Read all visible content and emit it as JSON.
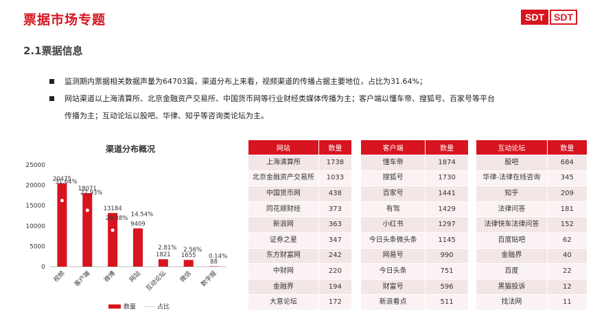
{
  "header": {
    "title": "票据市场专题",
    "logo_left": "SDT",
    "logo_right": "SDT"
  },
  "section": {
    "title": "2.1票据信息"
  },
  "bullets": [
    "监测期内票据相关数据声量为64703篇，渠道分布上来看，视频渠道的传播占据主要地位，占比为31.64%；",
    "网站渠道以上海清算所、北京金融资产交易所、中国货币网等行业财经类媒体传播为主；客户端以懂车帝、搜狐号、百家号等平台",
    "传播为主；互动论坛以股吧、华律、知乎等咨询类论坛为主。"
  ],
  "chart_data": {
    "type": "bar",
    "title": "渠道分布概况",
    "categories": [
      "视频",
      "客户端",
      "微博",
      "网站",
      "互动论坛",
      "微信",
      "数字报"
    ],
    "series": [
      {
        "name": "数量",
        "values": [
          20475,
          18071,
          13184,
          9409,
          1821,
          1655,
          88
        ],
        "color": "#d7141f"
      },
      {
        "name": "占比",
        "values": [
          "31.64%",
          "27.93%",
          "20.38%",
          "14.54%",
          "2.81%",
          "2.56%",
          "0.14%"
        ],
        "color": "#e6e6e6"
      }
    ],
    "yticks": [
      0,
      5000,
      10000,
      15000,
      20000,
      25000
    ],
    "ylim": [
      0,
      25000
    ],
    "legend_position": "bottom"
  },
  "tables": {
    "web": {
      "headers": [
        "网站",
        "数量"
      ],
      "rows": [
        [
          "上海清算所",
          "1738"
        ],
        [
          "北京金融资产交易所",
          "1033"
        ],
        [
          "中国货币网",
          "438"
        ],
        [
          "同花顺财经",
          "373"
        ],
        [
          "新浪网",
          "363"
        ],
        [
          "证券之星",
          "347"
        ],
        [
          "东方财富网",
          "242"
        ],
        [
          "中财网",
          "220"
        ],
        [
          "金融界",
          "194"
        ],
        [
          "大意论坛",
          "172"
        ]
      ]
    },
    "client": {
      "headers": [
        "客户端",
        "数量"
      ],
      "rows": [
        [
          "懂车帝",
          "1874"
        ],
        [
          "搜狐号",
          "1730"
        ],
        [
          "百家号",
          "1441"
        ],
        [
          "有驾",
          "1429"
        ],
        [
          "小红书",
          "1297"
        ],
        [
          "今日头条微头条",
          "1145"
        ],
        [
          "网易号",
          "990"
        ],
        [
          "今日头条",
          "751"
        ],
        [
          "财富号",
          "596"
        ],
        [
          "新浪看点",
          "511"
        ]
      ]
    },
    "forum": {
      "headers": [
        "互动论坛",
        "数量"
      ],
      "rows": [
        [
          "股吧",
          "684"
        ],
        [
          "华律-法律在线咨询",
          "345"
        ],
        [
          "知乎",
          "209"
        ],
        [
          "法律问答",
          "181"
        ],
        [
          "法律快车法律问答",
          "152"
        ],
        [
          "百度贴吧",
          "62"
        ],
        [
          "金融界",
          "40"
        ],
        [
          "百度",
          "22"
        ],
        [
          "黑猫投诉",
          "12"
        ],
        [
          "找法网",
          "11"
        ]
      ]
    }
  }
}
